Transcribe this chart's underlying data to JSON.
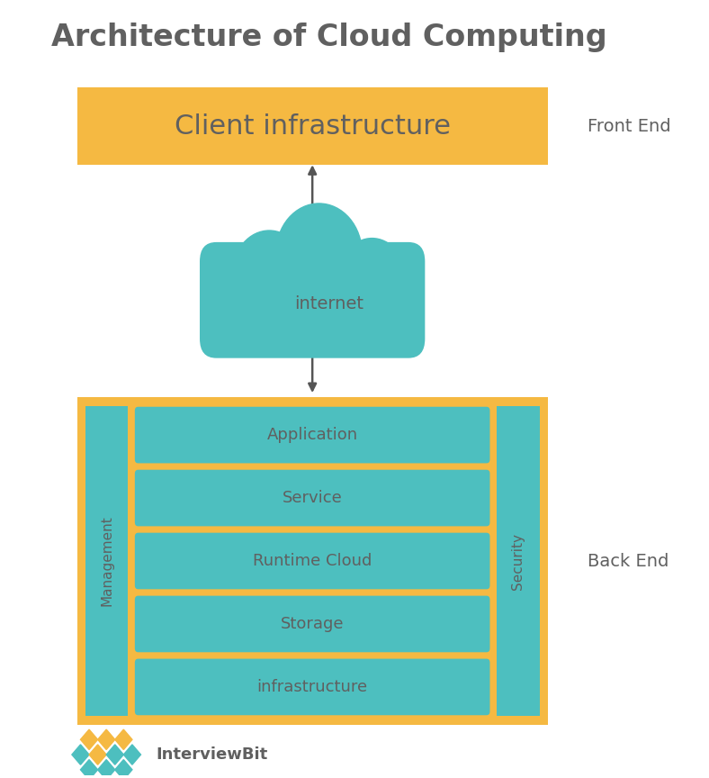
{
  "title": "Architecture of Cloud Computing",
  "title_color": "#555555",
  "title_fontsize": 24,
  "bg_color": "#ffffff",
  "orange": "#F5B942",
  "teal": "#4DBFBF",
  "gray_text": "#606060",
  "front_end_label": "Front End",
  "back_end_label": "Back End",
  "client_label": "Client infrastructure",
  "internet_label": "internet",
  "management_label": "Management",
  "security_label": "Security",
  "stack_labels": [
    "Application",
    "Service",
    "Runtime Cloud",
    "Storage",
    "infrastructure"
  ],
  "fig_w": 7.88,
  "fig_h": 8.64,
  "dpi": 100
}
